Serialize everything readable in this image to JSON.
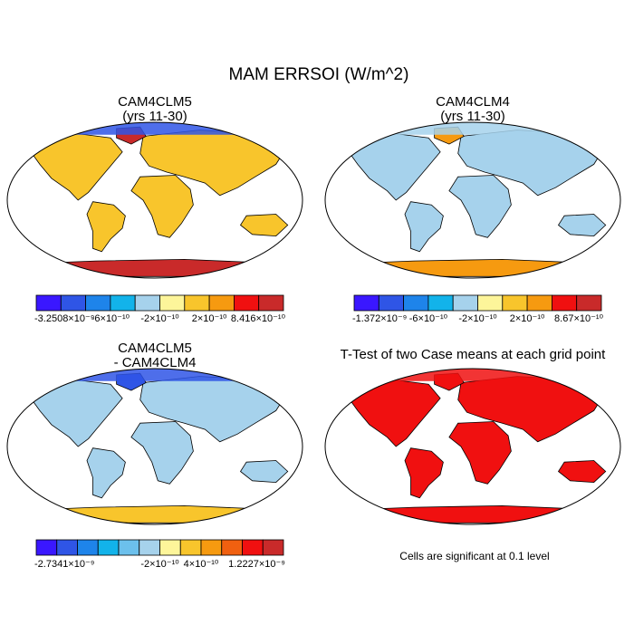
{
  "chart_data": {
    "type": "heatmap",
    "title": "MAM ERRSOI (W/m^2)",
    "panels": [
      {
        "id": "cam4clm5",
        "title_line1": "CAM4CLM5",
        "title_line2": "(yrs 11-30)",
        "colorbar": {
          "colors": [
            "#3a17ff",
            "#2f55e6",
            "#1e84ea",
            "#12b3ea",
            "#a6d2ec",
            "#fdf59a",
            "#f8c52c",
            "#f69a10",
            "#f01010",
            "#c92a2a"
          ],
          "tick_labels": [
            "-3.2508×10⁻⁹",
            "-6×10⁻¹⁰",
            "-2×10⁻¹⁰",
            "2×10⁻¹⁰",
            "8.416×10⁻¹⁰"
          ],
          "tick_positions": [
            0,
            3,
            5,
            7,
            10
          ]
        },
        "land_color": "#f8c52c",
        "north_color": "#2f55e6",
        "antarctica_color": "#c92a2a",
        "greenland_color": "#c92a2a"
      },
      {
        "id": "cam4clm4",
        "title_line1": "CAM4CLM4",
        "title_line2": "(yrs 11-30)",
        "colorbar": {
          "colors": [
            "#3a17ff",
            "#2f55e6",
            "#1e84ea",
            "#12b3ea",
            "#a6d2ec",
            "#fdf59a",
            "#f8c52c",
            "#f69a10",
            "#f01010",
            "#c92a2a"
          ],
          "tick_labels": [
            "-1.372×10⁻⁹",
            "-6×10⁻¹⁰",
            "-2×10⁻¹⁰",
            "2×10⁻¹⁰",
            "8.67×10⁻¹⁰"
          ],
          "tick_positions": [
            0,
            3,
            5,
            7,
            10
          ]
        },
        "land_color": "#a6d2ec",
        "north_color": "#a6d2ec",
        "antarctica_color": "#f69a10",
        "greenland_color": "#f69a10"
      },
      {
        "id": "diff",
        "title_line1": "CAM4CLM5",
        "title_line2": "- CAM4CLM4",
        "colorbar": {
          "colors": [
            "#3a17ff",
            "#2f55e6",
            "#1e84ea",
            "#12b3ea",
            "#6cc0ec",
            "#a6d2ec",
            "#fdf59a",
            "#f8c52c",
            "#f69a10",
            "#f06010",
            "#f01010",
            "#c92a2a"
          ],
          "tick_labels": [
            "-2.7341×10⁻⁹",
            "-2×10⁻¹⁰",
            "4×10⁻¹⁰",
            "1.2227×10⁻⁹"
          ],
          "tick_positions": [
            0,
            6,
            8,
            12
          ]
        },
        "land_color": "#a6d2ec",
        "north_color": "#2f55e6",
        "antarctica_color": "#f8c52c",
        "greenland_color": "#2f55e6"
      },
      {
        "id": "ttest",
        "title_line1": "T-Test of two Case means at each grid point",
        "title_line2": "",
        "note": "Cells are significant at 0.1 level",
        "land_color": "#f01010",
        "north_color": "#f01010",
        "antarctica_color": "#f01010",
        "greenland_color": "#f01010"
      }
    ]
  }
}
